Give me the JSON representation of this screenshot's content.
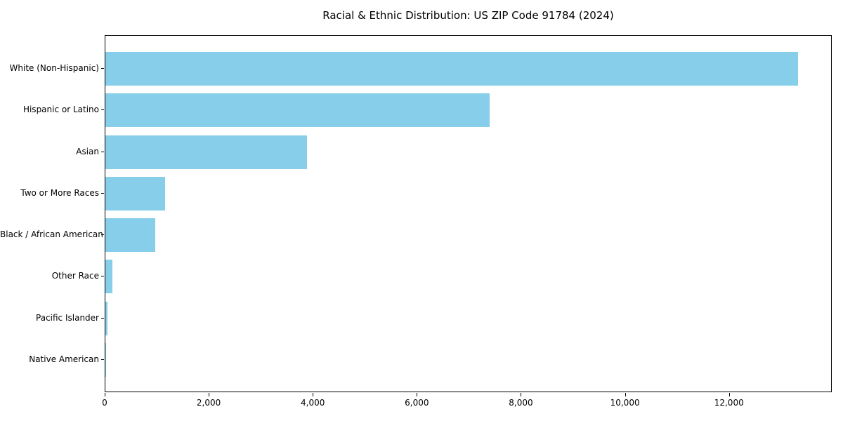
{
  "title": "Racial & Ethnic Distribution: US ZIP Code 91784 (2024)",
  "colors": {
    "bar": "#87CEEB",
    "axis": "#000000",
    "text": "#000000",
    "background": "#FFFFFF"
  },
  "chart_data": {
    "type": "bar",
    "orientation": "horizontal",
    "title": "Racial & Ethnic Distribution: US ZIP Code 91784 (2024)",
    "categories": [
      "White (Non-Hispanic)",
      "Hispanic or Latino",
      "Asian",
      "Two or More Races",
      "Black / African American",
      "Other Race",
      "Pacific Islander",
      "Native American"
    ],
    "values": [
      13310,
      7390,
      3880,
      1145,
      960,
      135,
      35,
      10
    ],
    "xlabel": "",
    "ylabel": "",
    "xlim": [
      0,
      13975
    ],
    "xticks": [
      0,
      2000,
      4000,
      6000,
      8000,
      10000,
      12000
    ],
    "xtick_labels": [
      "0",
      "2,000",
      "4,000",
      "6,000",
      "8,000",
      "10,000",
      "12,000"
    ],
    "grid": false,
    "legend": null,
    "bar_color": "#87CEEB"
  }
}
